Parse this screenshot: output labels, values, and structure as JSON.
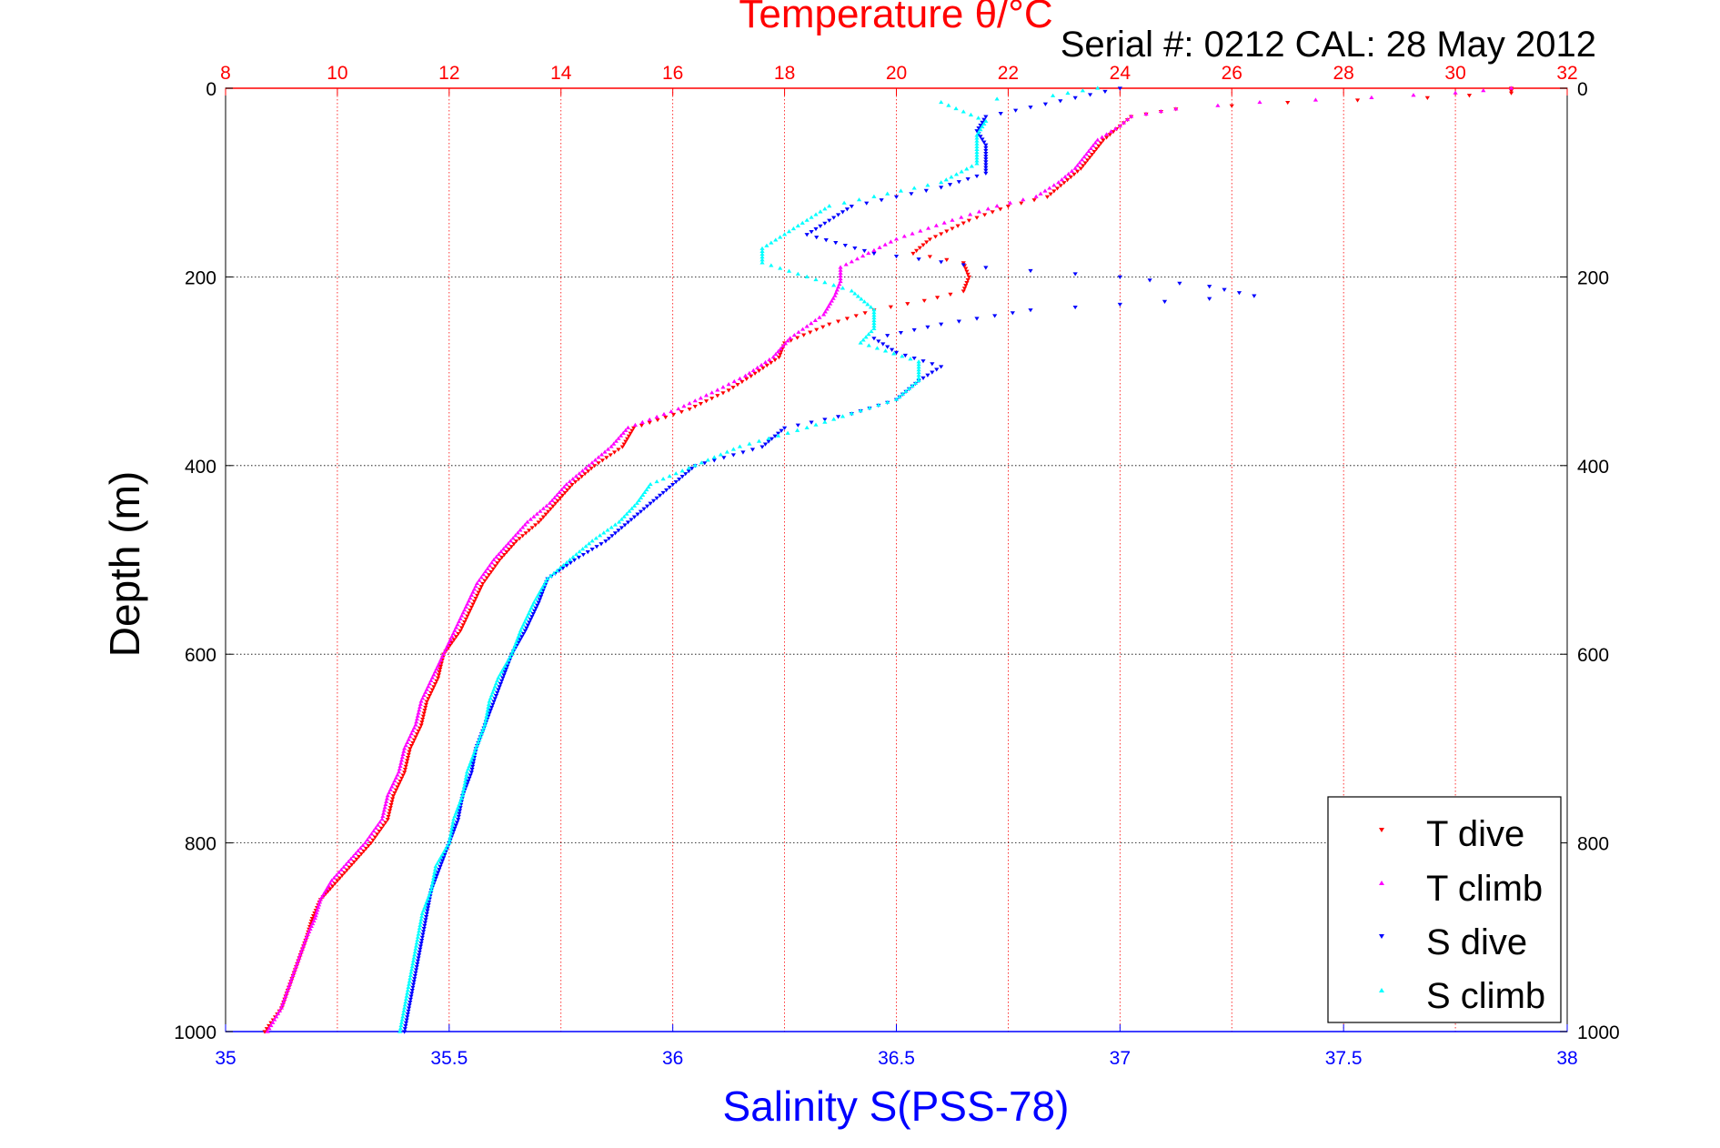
{
  "figure": {
    "serial_text": "Serial #: 0212  CAL: 28 May 2012"
  },
  "chart_data": {
    "type": "scatter",
    "title": "Temperature θ/°C",
    "subtitle": "Serial #: 0212  CAL: 28 May 2012",
    "ylabel": "Depth (m)",
    "xlabel_bottom": "Salinity S(PSS-78)",
    "xlabel_top": "Temperature θ/°C",
    "ylim": [
      0,
      1000
    ],
    "y_inverted": true,
    "x_bottom_lim": [
      35,
      38
    ],
    "x_top_lim": [
      8,
      32
    ],
    "x_bottom_ticks": [
      "35",
      "35.5",
      "36",
      "36.5",
      "37",
      "37.5",
      "38"
    ],
    "x_top_ticks": [
      "8",
      "10",
      "12",
      "14",
      "16",
      "18",
      "20",
      "22",
      "24",
      "26",
      "28",
      "30",
      "32"
    ],
    "y_ticks": [
      "0",
      "200",
      "400",
      "600",
      "800",
      "1000"
    ],
    "grid": true,
    "legend_position": "bottom-right",
    "colors": {
      "temperature_axis": "#ff0000",
      "salinity_axis": "#0000ff",
      "t_dive": "#ff0000",
      "t_climb": "#ff00ff",
      "s_dive": "#0000ff",
      "s_climb": "#00ffff"
    },
    "series": [
      {
        "name": "T dive",
        "axis": "temperature",
        "marker": "down-triangle",
        "color": "#ff0000",
        "points": [
          [
            31.0,
            0
          ],
          [
            31.0,
            5
          ],
          [
            29.5,
            10
          ],
          [
            27.0,
            15
          ],
          [
            25.0,
            22
          ],
          [
            24.2,
            30
          ],
          [
            24.0,
            40
          ],
          [
            23.7,
            55
          ],
          [
            23.5,
            70
          ],
          [
            23.3,
            85
          ],
          [
            23.0,
            100
          ],
          [
            22.7,
            115
          ],
          [
            22.0,
            125
          ],
          [
            21.3,
            140
          ],
          [
            20.6,
            160
          ],
          [
            20.3,
            175
          ],
          [
            21.2,
            185
          ],
          [
            21.3,
            200
          ],
          [
            21.2,
            215
          ],
          [
            20.5,
            225
          ],
          [
            19.6,
            235
          ],
          [
            18.8,
            250
          ],
          [
            18.0,
            270
          ],
          [
            17.9,
            285
          ],
          [
            17.4,
            305
          ],
          [
            17.0,
            320
          ],
          [
            16.3,
            340
          ],
          [
            15.3,
            360
          ],
          [
            15.1,
            380
          ],
          [
            14.6,
            400
          ],
          [
            14.2,
            420
          ],
          [
            13.9,
            440
          ],
          [
            13.6,
            460
          ],
          [
            13.2,
            480
          ],
          [
            12.9,
            500
          ],
          [
            12.6,
            525
          ],
          [
            12.4,
            550
          ],
          [
            12.2,
            575
          ],
          [
            11.9,
            600
          ],
          [
            11.8,
            625
          ],
          [
            11.6,
            650
          ],
          [
            11.5,
            675
          ],
          [
            11.3,
            700
          ],
          [
            11.2,
            725
          ],
          [
            11.0,
            750
          ],
          [
            10.9,
            775
          ],
          [
            10.6,
            800
          ],
          [
            10.3,
            820
          ],
          [
            10.0,
            840
          ],
          [
            9.7,
            860
          ],
          [
            9.55,
            880
          ],
          [
            9.45,
            900
          ],
          [
            9.3,
            925
          ],
          [
            9.15,
            950
          ],
          [
            9.0,
            975
          ],
          [
            8.7,
            1000
          ]
        ]
      },
      {
        "name": "T climb",
        "axis": "temperature",
        "marker": "up-triangle",
        "color": "#ff00ff",
        "points": [
          [
            31.0,
            0
          ],
          [
            30.0,
            5
          ],
          [
            28.5,
            10
          ],
          [
            26.5,
            15
          ],
          [
            25.0,
            22
          ],
          [
            24.2,
            30
          ],
          [
            24.0,
            40
          ],
          [
            23.6,
            55
          ],
          [
            23.4,
            70
          ],
          [
            23.2,
            85
          ],
          [
            22.9,
            100
          ],
          [
            22.5,
            115
          ],
          [
            21.8,
            125
          ],
          [
            21.0,
            140
          ],
          [
            20.0,
            160
          ],
          [
            19.5,
            175
          ],
          [
            19.0,
            190
          ],
          [
            19.0,
            205
          ],
          [
            18.9,
            220
          ],
          [
            18.7,
            240
          ],
          [
            18.1,
            265
          ],
          [
            17.8,
            285
          ],
          [
            17.3,
            305
          ],
          [
            16.8,
            320
          ],
          [
            16.1,
            340
          ],
          [
            15.2,
            360
          ],
          [
            14.9,
            380
          ],
          [
            14.5,
            400
          ],
          [
            14.1,
            420
          ],
          [
            13.8,
            440
          ],
          [
            13.4,
            460
          ],
          [
            13.1,
            480
          ],
          [
            12.8,
            500
          ],
          [
            12.5,
            525
          ],
          [
            12.3,
            550
          ],
          [
            12.1,
            575
          ],
          [
            11.9,
            600
          ],
          [
            11.7,
            625
          ],
          [
            11.5,
            650
          ],
          [
            11.4,
            675
          ],
          [
            11.2,
            700
          ],
          [
            11.1,
            725
          ],
          [
            10.9,
            750
          ],
          [
            10.8,
            775
          ],
          [
            10.5,
            800
          ],
          [
            10.2,
            820
          ],
          [
            9.9,
            840
          ],
          [
            9.7,
            860
          ],
          [
            9.6,
            880
          ],
          [
            9.45,
            900
          ],
          [
            9.3,
            925
          ],
          [
            9.15,
            950
          ],
          [
            9.0,
            975
          ],
          [
            8.75,
            1000
          ]
        ]
      },
      {
        "name": "S dive",
        "axis": "salinity",
        "marker": "down-triangle",
        "color": "#0000ff",
        "points": [
          [
            37.0,
            0
          ],
          [
            36.9,
            10
          ],
          [
            36.8,
            20
          ],
          [
            36.7,
            30
          ],
          [
            36.68,
            45
          ],
          [
            36.7,
            60
          ],
          [
            36.7,
            75
          ],
          [
            36.7,
            90
          ],
          [
            36.6,
            105
          ],
          [
            36.5,
            115
          ],
          [
            36.4,
            125
          ],
          [
            36.35,
            140
          ],
          [
            36.3,
            155
          ],
          [
            36.45,
            175
          ],
          [
            36.7,
            190
          ],
          [
            37.0,
            200
          ],
          [
            37.2,
            210
          ],
          [
            37.3,
            220
          ],
          [
            36.8,
            235
          ],
          [
            36.6,
            250
          ],
          [
            36.45,
            265
          ],
          [
            36.5,
            280
          ],
          [
            36.6,
            295
          ],
          [
            36.55,
            310
          ],
          [
            36.5,
            330
          ],
          [
            36.4,
            345
          ],
          [
            36.25,
            360
          ],
          [
            36.2,
            380
          ],
          [
            36.05,
            400
          ],
          [
            36.0,
            420
          ],
          [
            35.95,
            440
          ],
          [
            35.9,
            460
          ],
          [
            35.85,
            480
          ],
          [
            35.78,
            500
          ],
          [
            35.72,
            520
          ],
          [
            35.7,
            545
          ],
          [
            35.67,
            575
          ],
          [
            35.64,
            600
          ],
          [
            35.62,
            625
          ],
          [
            35.6,
            650
          ],
          [
            35.58,
            675
          ],
          [
            35.56,
            700
          ],
          [
            35.55,
            725
          ],
          [
            35.53,
            750
          ],
          [
            35.52,
            775
          ],
          [
            35.5,
            800
          ],
          [
            35.48,
            825
          ],
          [
            35.46,
            850
          ],
          [
            35.45,
            875
          ],
          [
            35.44,
            900
          ],
          [
            35.43,
            925
          ],
          [
            35.42,
            950
          ],
          [
            35.41,
            975
          ],
          [
            35.4,
            1000
          ]
        ]
      },
      {
        "name": "S climb",
        "axis": "salinity",
        "marker": "up-triangle",
        "color": "#00ffff",
        "points": [
          [
            36.95,
            0
          ],
          [
            36.85,
            8
          ],
          [
            36.6,
            15
          ],
          [
            36.65,
            25
          ],
          [
            36.7,
            35
          ],
          [
            36.68,
            50
          ],
          [
            36.68,
            65
          ],
          [
            36.68,
            80
          ],
          [
            36.6,
            100
          ],
          [
            36.45,
            115
          ],
          [
            36.35,
            125
          ],
          [
            36.3,
            140
          ],
          [
            36.25,
            155
          ],
          [
            36.2,
            170
          ],
          [
            36.2,
            185
          ],
          [
            36.3,
            200
          ],
          [
            36.4,
            215
          ],
          [
            36.45,
            235
          ],
          [
            36.45,
            255
          ],
          [
            36.42,
            270
          ],
          [
            36.55,
            290
          ],
          [
            36.55,
            310
          ],
          [
            36.5,
            330
          ],
          [
            36.4,
            345
          ],
          [
            36.3,
            360
          ],
          [
            36.15,
            380
          ],
          [
            36.05,
            400
          ],
          [
            35.95,
            420
          ],
          [
            35.92,
            440
          ],
          [
            35.88,
            460
          ],
          [
            35.82,
            480
          ],
          [
            35.77,
            500
          ],
          [
            35.72,
            520
          ],
          [
            35.69,
            545
          ],
          [
            35.66,
            575
          ],
          [
            35.64,
            600
          ],
          [
            35.61,
            625
          ],
          [
            35.59,
            650
          ],
          [
            35.58,
            675
          ],
          [
            35.56,
            700
          ],
          [
            35.54,
            725
          ],
          [
            35.53,
            750
          ],
          [
            35.51,
            775
          ],
          [
            35.5,
            800
          ],
          [
            35.47,
            825
          ],
          [
            35.46,
            850
          ],
          [
            35.44,
            875
          ],
          [
            35.43,
            900
          ],
          [
            35.42,
            925
          ],
          [
            35.41,
            950
          ],
          [
            35.4,
            975
          ],
          [
            35.39,
            1000
          ]
        ]
      }
    ]
  }
}
